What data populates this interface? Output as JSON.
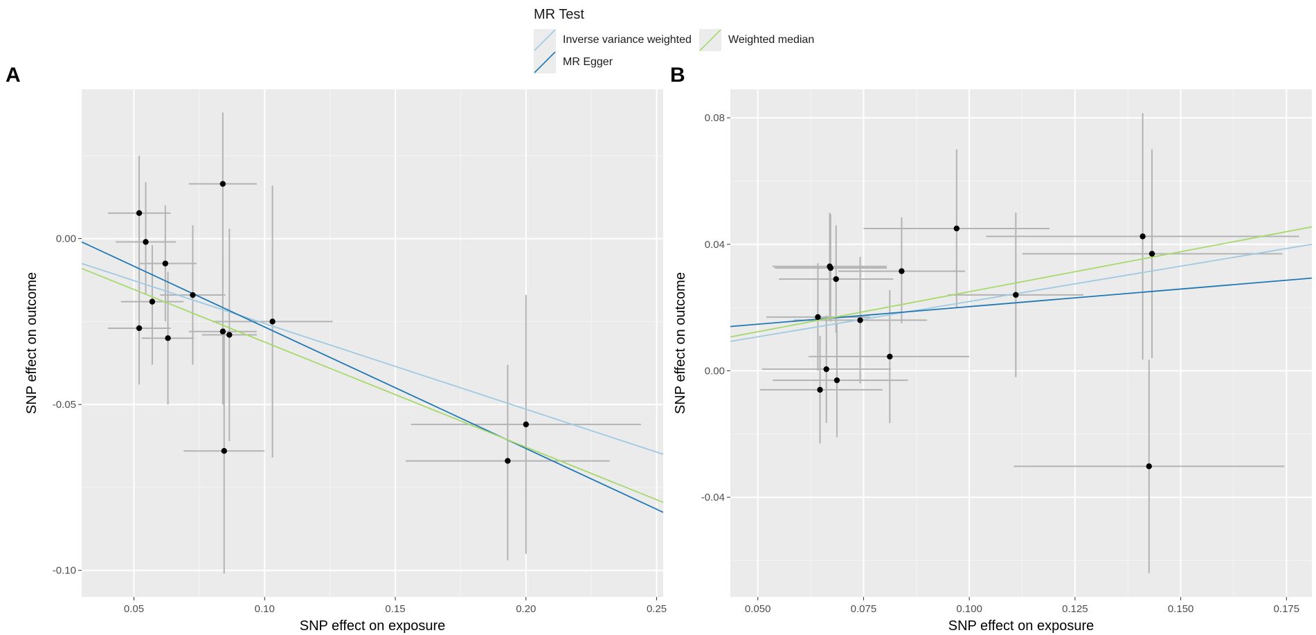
{
  "legend": {
    "title": "MR Test",
    "items": [
      {
        "label": "Inverse variance weighted",
        "color": "#9ecae1"
      },
      {
        "label": "MR Egger",
        "color": "#1f78b4"
      },
      {
        "label": "Weighted median",
        "color": "#a6d96a"
      }
    ]
  },
  "chart_data": [
    {
      "panel": "A",
      "type": "scatter",
      "xlabel": "SNP effect on exposure",
      "ylabel": "SNP effect on outcome",
      "xlim": [
        0.03,
        0.2525
      ],
      "ylim": [
        -0.108,
        0.045
      ],
      "xticks": [
        0.05,
        0.1,
        0.15,
        0.2,
        0.25
      ],
      "xtick_labels": [
        "0.05",
        "0.10",
        "0.15",
        "0.20",
        "0.25"
      ],
      "yticks": [
        -0.1,
        -0.05,
        0.0
      ],
      "ytick_labels": [
        "-0.10",
        "-0.05",
        "0.00"
      ],
      "grid": true,
      "points": [
        {
          "x": 0.052,
          "y": 0.0077,
          "xmin": 0.04,
          "xmax": 0.064,
          "ymin": -0.011,
          "ymax": 0.025
        },
        {
          "x": 0.0545,
          "y": -0.001,
          "xmin": 0.043,
          "xmax": 0.066,
          "ymin": -0.017,
          "ymax": 0.017
        },
        {
          "x": 0.062,
          "y": -0.0075,
          "xmin": 0.052,
          "xmax": 0.074,
          "ymin": -0.025,
          "ymax": 0.01
        },
        {
          "x": 0.057,
          "y": -0.019,
          "xmin": 0.045,
          "xmax": 0.069,
          "ymin": -0.038,
          "ymax": -0.002
        },
        {
          "x": 0.0725,
          "y": -0.017,
          "xmin": 0.06,
          "xmax": 0.085,
          "ymin": -0.038,
          "ymax": 0.004
        },
        {
          "x": 0.052,
          "y": -0.027,
          "xmin": 0.04,
          "xmax": 0.064,
          "ymin": -0.044,
          "ymax": -0.01
        },
        {
          "x": 0.063,
          "y": -0.03,
          "xmin": 0.053,
          "xmax": 0.073,
          "ymin": -0.05,
          "ymax": -0.01
        },
        {
          "x": 0.084,
          "y": 0.0165,
          "xmin": 0.071,
          "xmax": 0.097,
          "ymin": -0.015,
          "ymax": 0.038
        },
        {
          "x": 0.084,
          "y": -0.028,
          "xmin": 0.071,
          "xmax": 0.097,
          "ymin": -0.05,
          "ymax": -0.006
        },
        {
          "x": 0.0865,
          "y": -0.029,
          "xmin": 0.076,
          "xmax": 0.097,
          "ymin": -0.061,
          "ymax": 0.003
        },
        {
          "x": 0.103,
          "y": -0.025,
          "xmin": 0.08,
          "xmax": 0.126,
          "ymin": -0.066,
          "ymax": 0.016
        },
        {
          "x": 0.0845,
          "y": -0.064,
          "xmin": 0.069,
          "xmax": 0.1,
          "ymin": -0.101,
          "ymax": -0.027
        },
        {
          "x": 0.2,
          "y": -0.056,
          "xmin": 0.156,
          "xmax": 0.244,
          "ymin": -0.095,
          "ymax": -0.017
        },
        {
          "x": 0.193,
          "y": -0.067,
          "xmin": 0.154,
          "xmax": 0.232,
          "ymin": -0.097,
          "ymax": -0.038
        }
      ],
      "lines": [
        {
          "name": "Inverse variance weighted",
          "x": [
            0.03,
            0.2525
          ],
          "y": [
            -0.0075,
            -0.065
          ]
        },
        {
          "name": "MR Egger",
          "x": [
            0.03,
            0.2525
          ],
          "y": [
            -0.001,
            -0.0825
          ]
        },
        {
          "name": "Weighted median",
          "x": [
            0.03,
            0.2525
          ],
          "y": [
            -0.009,
            -0.0795
          ]
        }
      ]
    },
    {
      "panel": "B",
      "type": "scatter",
      "xlabel": "SNP effect on exposure",
      "ylabel": "SNP effect on outcome",
      "xlim": [
        0.0435,
        0.181
      ],
      "ylim": [
        -0.0715,
        0.089
      ],
      "xticks": [
        0.05,
        0.075,
        0.1,
        0.125,
        0.15,
        0.175
      ],
      "xtick_labels": [
        "0.050",
        "0.075",
        "0.100",
        "0.125",
        "0.150",
        "0.175"
      ],
      "yticks": [
        -0.04,
        0.0,
        0.04,
        0.08
      ],
      "ytick_labels": [
        "-0.04",
        "0.00",
        "0.04",
        "0.08"
      ],
      "grid": true,
      "points": [
        {
          "x": 0.067,
          "y": 0.033,
          "xmin": 0.0535,
          "xmax": 0.0805,
          "ymin": 0.016,
          "ymax": 0.05
        },
        {
          "x": 0.0672,
          "y": 0.0325,
          "xmin": 0.054,
          "xmax": 0.0805,
          "ymin": 0.0155,
          "ymax": 0.0495
        },
        {
          "x": 0.0685,
          "y": 0.029,
          "xmin": 0.055,
          "xmax": 0.082,
          "ymin": 0.012,
          "ymax": 0.046
        },
        {
          "x": 0.084,
          "y": 0.0315,
          "xmin": 0.069,
          "xmax": 0.099,
          "ymin": 0.015,
          "ymax": 0.0485
        },
        {
          "x": 0.097,
          "y": 0.045,
          "xmin": 0.075,
          "xmax": 0.119,
          "ymin": 0.02,
          "ymax": 0.07
        },
        {
          "x": 0.111,
          "y": 0.024,
          "xmin": 0.095,
          "xmax": 0.127,
          "ymin": -0.002,
          "ymax": 0.05
        },
        {
          "x": 0.0642,
          "y": 0.017,
          "xmin": 0.052,
          "xmax": 0.0765,
          "ymin": 0.0,
          "ymax": 0.034
        },
        {
          "x": 0.0742,
          "y": 0.016,
          "xmin": 0.0585,
          "xmax": 0.09,
          "ymin": -0.004,
          "ymax": 0.036
        },
        {
          "x": 0.0812,
          "y": 0.0045,
          "xmin": 0.062,
          "xmax": 0.1,
          "ymin": -0.0165,
          "ymax": 0.0255
        },
        {
          "x": 0.0662,
          "y": 0.0005,
          "xmin": 0.051,
          "xmax": 0.0815,
          "ymin": -0.0165,
          "ymax": 0.0175
        },
        {
          "x": 0.0687,
          "y": -0.003,
          "xmin": 0.0535,
          "xmax": 0.0855,
          "ymin": -0.021,
          "ymax": 0.015
        },
        {
          "x": 0.0647,
          "y": -0.006,
          "xmin": 0.0505,
          "xmax": 0.0795,
          "ymin": -0.023,
          "ymax": 0.011
        },
        {
          "x": 0.141,
          "y": 0.0425,
          "xmin": 0.104,
          "xmax": 0.178,
          "ymin": 0.0035,
          "ymax": 0.0815
        },
        {
          "x": 0.1432,
          "y": 0.037,
          "xmin": 0.1125,
          "xmax": 0.174,
          "ymin": 0.004,
          "ymax": 0.07
        },
        {
          "x": 0.1425,
          "y": -0.0302,
          "xmin": 0.1105,
          "xmax": 0.1745,
          "ymin": -0.064,
          "ymax": 0.0035
        }
      ],
      "lines": [
        {
          "name": "Inverse variance weighted",
          "x": [
            0.0435,
            0.181
          ],
          "y": [
            0.0093,
            0.04
          ]
        },
        {
          "name": "MR Egger",
          "x": [
            0.0435,
            0.181
          ],
          "y": [
            0.014,
            0.0293
          ]
        },
        {
          "name": "Weighted median",
          "x": [
            0.0435,
            0.181
          ],
          "y": [
            0.0107,
            0.0455
          ]
        }
      ]
    }
  ]
}
